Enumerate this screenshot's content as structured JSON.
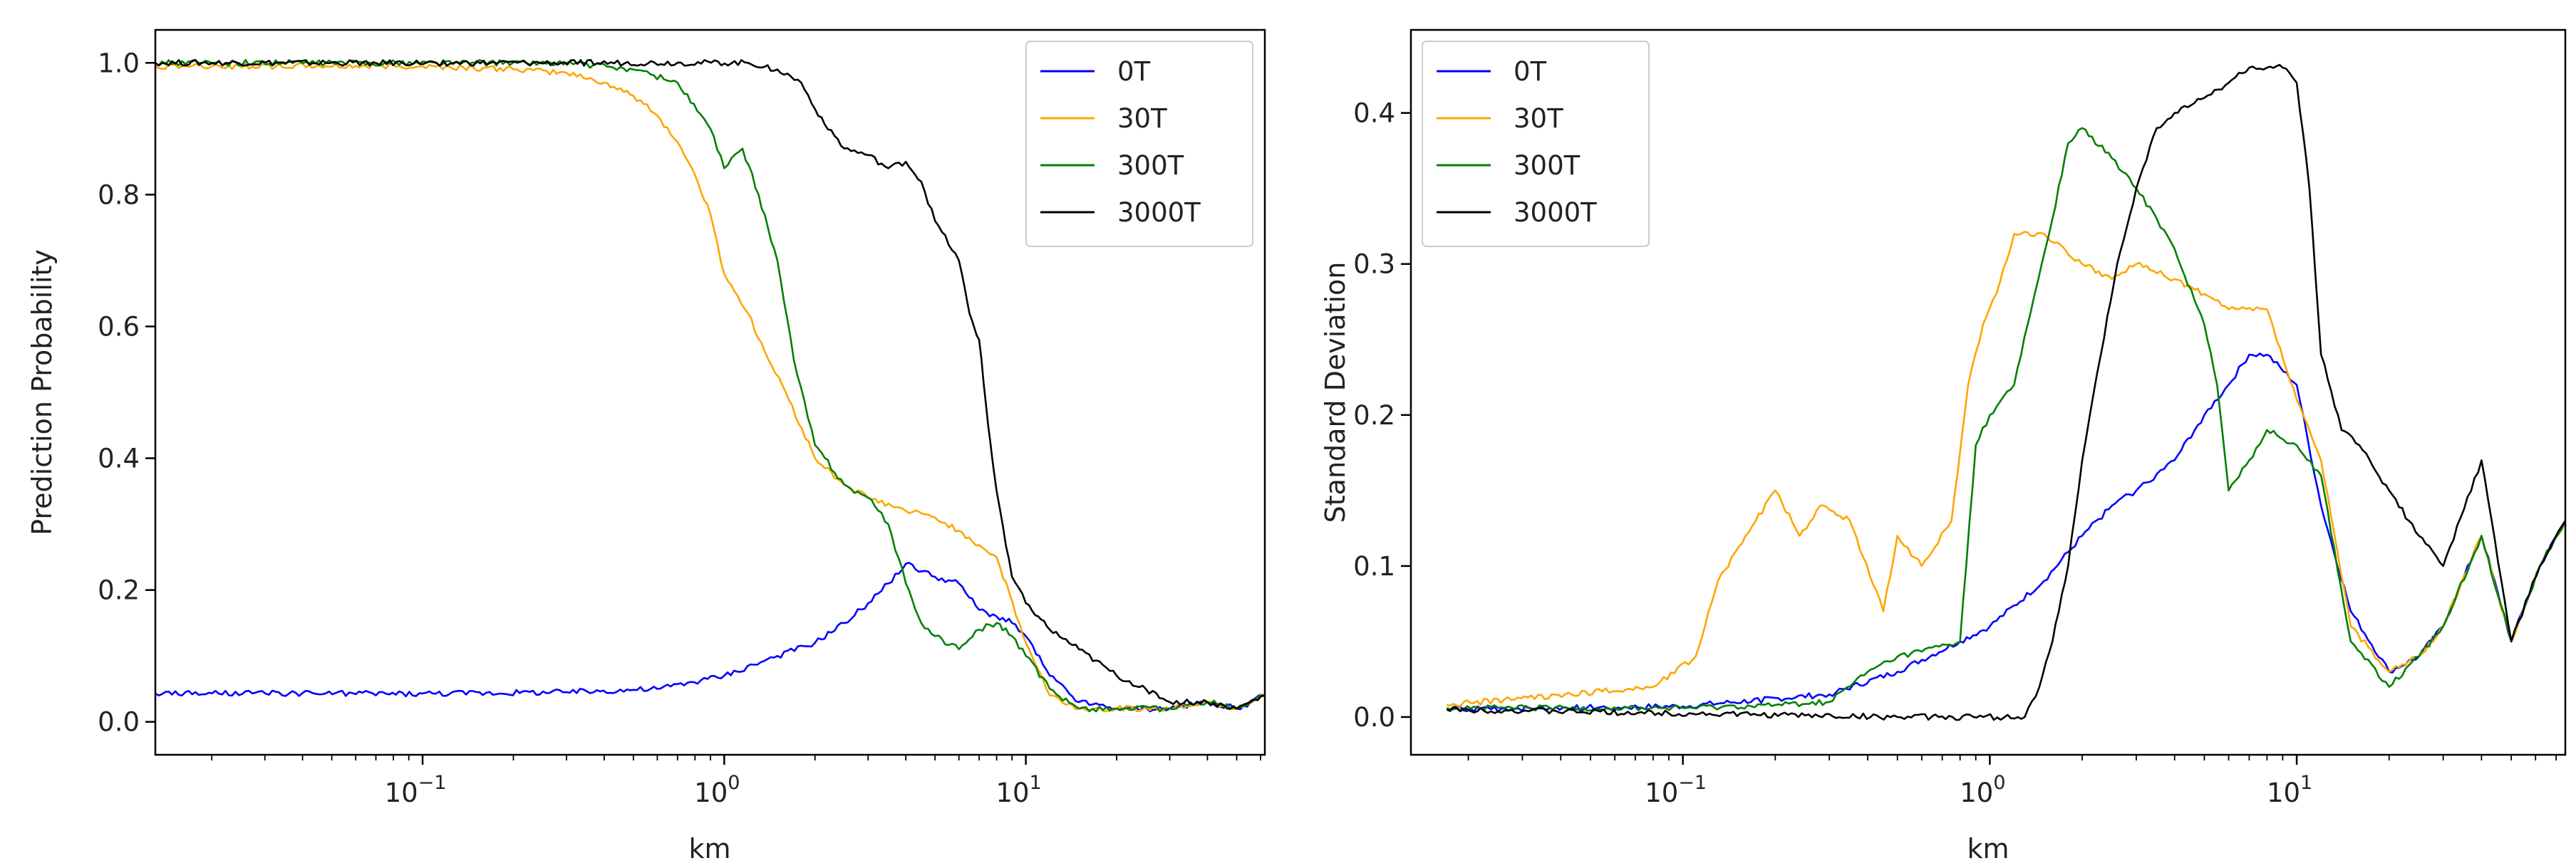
{
  "chart_data": [
    {
      "type": "line",
      "title": "",
      "xlabel": "km",
      "ylabel": "Prediction Probability",
      "xscale": "log",
      "xlim": [
        0.013,
        62
      ],
      "ylim": [
        -0.05,
        1.05
      ],
      "yticks": [
        0.0,
        0.2,
        0.4,
        0.6,
        0.8,
        1.0
      ],
      "ytick_labels": [
        "0.0",
        "0.2",
        "0.4",
        "0.6",
        "0.8",
        "1.0"
      ],
      "xticks": [
        0.1,
        1,
        10
      ],
      "xtick_labels": [
        [
          "10",
          "−1"
        ],
        [
          "10",
          "0"
        ],
        [
          "10",
          "1"
        ]
      ],
      "legend_position": "top-right",
      "series": [
        {
          "name": "0T",
          "color": "#0000ff",
          "x": [
            0.013,
            0.1,
            0.3,
            0.6,
            1.0,
            1.5,
            2.0,
            2.5,
            3.0,
            3.5,
            4.0,
            5.0,
            6.0,
            7.0,
            8.0,
            9.0,
            10,
            12,
            15,
            20,
            30,
            40,
            50,
            62
          ],
          "y": [
            0.043,
            0.043,
            0.045,
            0.05,
            0.07,
            0.1,
            0.12,
            0.15,
            0.18,
            0.21,
            0.24,
            0.22,
            0.21,
            0.17,
            0.16,
            0.15,
            0.13,
            0.07,
            0.03,
            0.02,
            0.02,
            0.03,
            0.02,
            0.04
          ]
        },
        {
          "name": "30T",
          "color": "#ffa500",
          "x": [
            0.013,
            0.1,
            0.2,
            0.3,
            0.4,
            0.5,
            0.6,
            0.7,
            0.8,
            0.9,
            1.0,
            1.2,
            1.4,
            1.6,
            2.0,
            2.5,
            3.0,
            4.0,
            5.0,
            6.0,
            8.0,
            10,
            12,
            15,
            20,
            30,
            40,
            50,
            62
          ],
          "y": [
            0.995,
            0.995,
            0.99,
            0.985,
            0.97,
            0.95,
            0.92,
            0.88,
            0.83,
            0.77,
            0.68,
            0.62,
            0.55,
            0.5,
            0.4,
            0.36,
            0.34,
            0.32,
            0.31,
            0.29,
            0.25,
            0.12,
            0.04,
            0.02,
            0.02,
            0.02,
            0.03,
            0.02,
            0.04
          ]
        },
        {
          "name": "300T",
          "color": "#008000",
          "x": [
            0.013,
            0.3,
            0.5,
            0.7,
            0.9,
            1.0,
            1.15,
            1.3,
            1.5,
            1.7,
            2.0,
            2.5,
            3.0,
            3.5,
            4.0,
            4.5,
            5.0,
            6.0,
            7.0,
            8.0,
            9.0,
            10,
            12,
            15,
            20,
            30,
            40,
            50,
            62
          ],
          "y": [
            1.0,
            1.0,
            0.99,
            0.97,
            0.9,
            0.84,
            0.87,
            0.8,
            0.7,
            0.55,
            0.42,
            0.36,
            0.34,
            0.3,
            0.21,
            0.15,
            0.13,
            0.11,
            0.14,
            0.15,
            0.13,
            0.1,
            0.05,
            0.02,
            0.02,
            0.02,
            0.03,
            0.02,
            0.04
          ]
        },
        {
          "name": "3000T",
          "color": "#000000",
          "x": [
            0.013,
            1.2,
            1.5,
            1.8,
            2.0,
            2.5,
            3.0,
            3.5,
            4.0,
            4.5,
            5.0,
            6.0,
            6.5,
            7.0,
            7.5,
            8.0,
            9.0,
            10,
            11,
            12,
            15,
            20,
            25,
            30,
            40,
            50,
            62
          ],
          "y": [
            1.0,
            1.0,
            0.99,
            0.97,
            0.93,
            0.87,
            0.86,
            0.84,
            0.85,
            0.82,
            0.76,
            0.7,
            0.62,
            0.58,
            0.45,
            0.35,
            0.22,
            0.18,
            0.16,
            0.14,
            0.11,
            0.07,
            0.05,
            0.03,
            0.03,
            0.02,
            0.04
          ]
        }
      ]
    },
    {
      "type": "line",
      "title": "",
      "xlabel": "km",
      "ylabel": "Standard Deviation",
      "xscale": "log",
      "xlim": [
        0.013,
        75
      ],
      "ylim": [
        -0.025,
        0.455
      ],
      "yticks": [
        0.0,
        0.1,
        0.2,
        0.3,
        0.4
      ],
      "ytick_labels": [
        "0.0",
        "0.1",
        "0.2",
        "0.3",
        "0.4"
      ],
      "xticks": [
        0.1,
        1,
        10
      ],
      "xtick_labels": [
        [
          "10",
          "−1"
        ],
        [
          "10",
          "0"
        ],
        [
          "10",
          "1"
        ]
      ],
      "legend_position": "top-left",
      "series": [
        {
          "name": "0T",
          "color": "#0000ff",
          "x": [
            0.017,
            0.1,
            0.3,
            0.5,
            0.8,
            1.0,
            1.5,
            2.0,
            2.5,
            3.0,
            4.0,
            5.0,
            6.0,
            7.0,
            8.0,
            10,
            12,
            15,
            20,
            25,
            30,
            40,
            50,
            62,
            75
          ],
          "y": [
            0.005,
            0.007,
            0.015,
            0.03,
            0.05,
            0.06,
            0.09,
            0.12,
            0.14,
            0.15,
            0.17,
            0.2,
            0.22,
            0.24,
            0.24,
            0.22,
            0.14,
            0.07,
            0.03,
            0.04,
            0.06,
            0.12,
            0.05,
            0.1,
            0.13
          ]
        },
        {
          "name": "30T",
          "color": "#ffa500",
          "x": [
            0.017,
            0.08,
            0.11,
            0.13,
            0.16,
            0.2,
            0.24,
            0.28,
            0.35,
            0.45,
            0.5,
            0.6,
            0.75,
            0.85,
            0.95,
            1.05,
            1.2,
            1.5,
            2.0,
            2.5,
            3.0,
            4.0,
            5.0,
            6.0,
            8.0,
            10,
            12,
            15,
            20,
            25,
            30,
            40,
            50,
            62,
            75
          ],
          "y": [
            0.008,
            0.02,
            0.04,
            0.09,
            0.12,
            0.15,
            0.12,
            0.14,
            0.13,
            0.07,
            0.12,
            0.1,
            0.13,
            0.22,
            0.26,
            0.28,
            0.32,
            0.32,
            0.3,
            0.29,
            0.3,
            0.29,
            0.28,
            0.27,
            0.27,
            0.21,
            0.17,
            0.06,
            0.03,
            0.04,
            0.06,
            0.12,
            0.05,
            0.1,
            0.13
          ]
        },
        {
          "name": "300T",
          "color": "#008000",
          "x": [
            0.017,
            0.1,
            0.2,
            0.3,
            0.4,
            0.5,
            0.8,
            0.9,
            1.0,
            1.2,
            1.4,
            1.6,
            1.8,
            2.0,
            2.5,
            3.0,
            3.5,
            4.0,
            5.0,
            5.5,
            6.0,
            7.0,
            8.0,
            10,
            12,
            15,
            20,
            25,
            30,
            40,
            50,
            62,
            75
          ],
          "y": [
            0.006,
            0.006,
            0.008,
            0.01,
            0.03,
            0.04,
            0.05,
            0.18,
            0.2,
            0.22,
            0.28,
            0.33,
            0.38,
            0.39,
            0.37,
            0.35,
            0.33,
            0.31,
            0.26,
            0.22,
            0.15,
            0.17,
            0.19,
            0.18,
            0.16,
            0.05,
            0.02,
            0.04,
            0.06,
            0.12,
            0.05,
            0.1,
            0.13
          ]
        },
        {
          "name": "3000T",
          "color": "#000000",
          "x": [
            0.017,
            0.5,
            1.3,
            1.45,
            1.6,
            1.8,
            2.0,
            2.3,
            2.6,
            3.0,
            3.5,
            4.0,
            5.0,
            6.0,
            7.0,
            8.0,
            9.0,
            10,
            11,
            12,
            14,
            16,
            20,
            25,
            30,
            40,
            50,
            62,
            75
          ],
          "y": [
            0.005,
            0.0,
            0.0,
            0.02,
            0.05,
            0.1,
            0.17,
            0.24,
            0.3,
            0.35,
            0.39,
            0.4,
            0.41,
            0.42,
            0.43,
            0.43,
            0.43,
            0.42,
            0.35,
            0.24,
            0.19,
            0.18,
            0.15,
            0.12,
            0.1,
            0.17,
            0.05,
            0.1,
            0.13
          ]
        }
      ]
    }
  ]
}
